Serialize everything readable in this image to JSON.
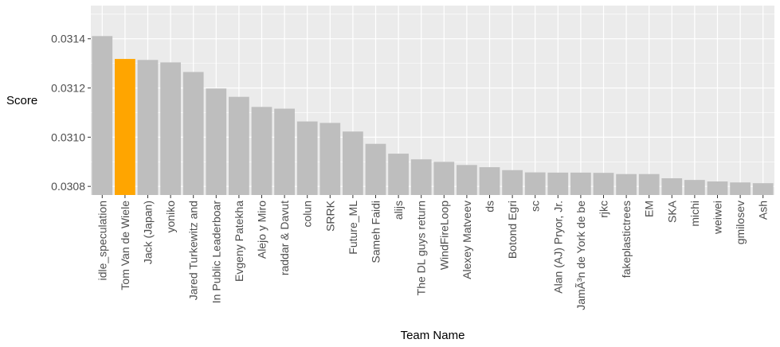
{
  "chart_data": {
    "type": "bar",
    "title": "",
    "xlabel": "Team Name",
    "ylabel": "Score",
    "ylim": [
      0.030765,
      0.031535
    ],
    "yticks": [
      0.0308,
      0.031,
      0.0312,
      0.0314
    ],
    "ytick_labels": [
      "0.0308",
      "0.0310",
      "0.0312",
      "0.0314"
    ],
    "grid": true,
    "colors": {
      "default": "#bebebe",
      "highlight": "#ffa500",
      "panel": "#ebebeb",
      "gridline": "#ffffff"
    },
    "highlight": "Tom Van de Wiele",
    "categories": [
      "idle_speculation",
      "Tom Van de Wiele",
      "Jack (Japan)",
      "yoniko",
      "Jared Turkewitz and",
      "In Public Leaderboar",
      "Evgeny Patekha",
      "Alejo y Miro",
      "raddar & Davut",
      "colun",
      "SRRK",
      "Future_ML",
      "Sameh Faidi",
      "alijs",
      "The DL guys return",
      "WindFireLoop",
      "Alexey Matveev",
      "ds",
      "Botond Egri",
      "sc",
      "Alan (AJ) Pryor, Jr.",
      "JamÃ³n de York de be",
      "rjkc",
      "fakeplastictrees",
      "EM",
      "SKA",
      "michi",
      "weiwei",
      "gmilosev",
      "Ash"
    ],
    "values": [
      0.031411,
      0.031318,
      0.031314,
      0.031304,
      0.031265,
      0.031198,
      0.031164,
      0.031123,
      0.031116,
      0.031064,
      0.031058,
      0.031023,
      0.030973,
      0.030933,
      0.03091,
      0.0309,
      0.030887,
      0.030878,
      0.030866,
      0.030857,
      0.030856,
      0.030856,
      0.030855,
      0.03085,
      0.03085,
      0.030833,
      0.030826,
      0.03082,
      0.030816,
      0.030813
    ]
  }
}
